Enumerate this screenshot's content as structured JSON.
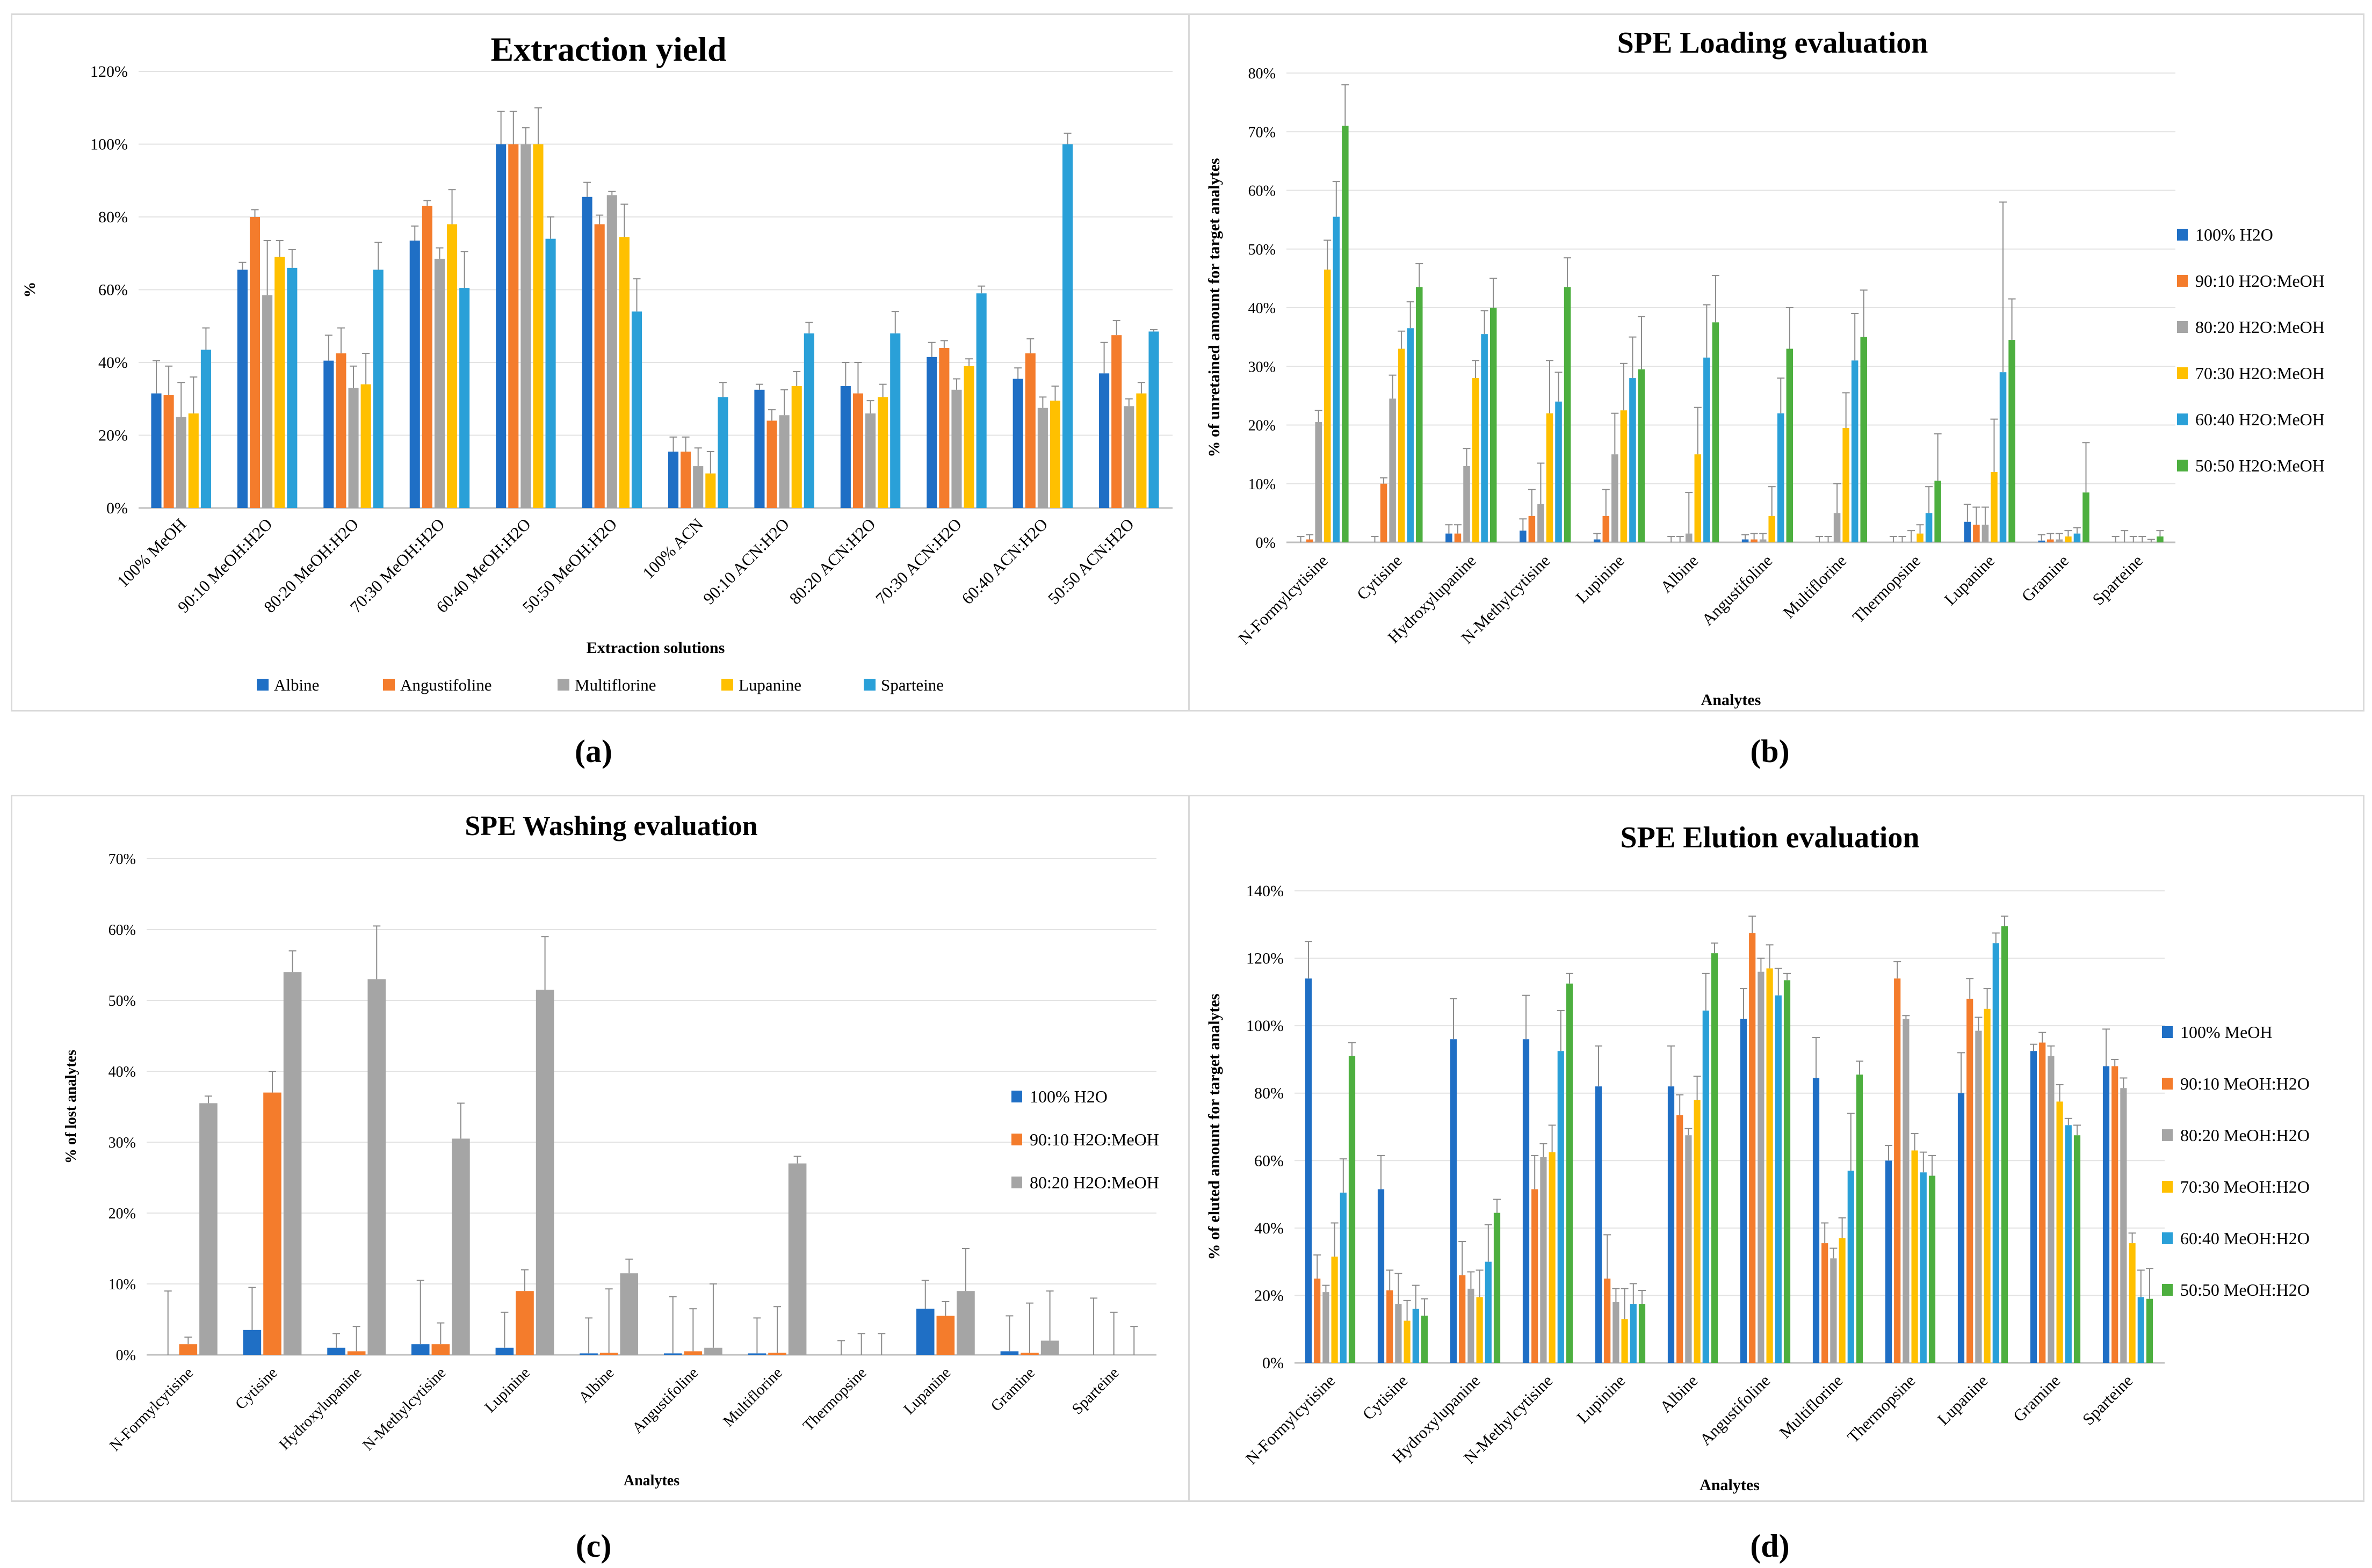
{
  "colors": {
    "blue1": "#1f6fc5",
    "orange": "#f47c2c",
    "gray": "#a5a5a5",
    "yellow": "#ffc000",
    "blue2": "#2aa0d8",
    "green": "#4daf3f"
  },
  "captions": {
    "a": "(a)",
    "b": "(b)",
    "c": "(c)",
    "d": "(d)"
  },
  "chart_data": [
    {
      "id": "a",
      "type": "bar",
      "title": "Extraction yield",
      "xlabel": "Extraction solutions",
      "ylabel": "%",
      "ylim": [
        0,
        120
      ],
      "yticks": [
        "0%",
        "20%",
        "40%",
        "60%",
        "80%",
        "100%",
        "120%"
      ],
      "legend_position": "bottom",
      "categories": [
        "100% MeOH",
        "90:10 MeOH:H2O",
        "80:20 MeOH:H2O",
        "70:30 MeOH:H2O",
        "60:40 MeOH:H2O",
        "50:50 MeOH:H2O",
        "100% ACN",
        "90:10 ACN:H2O",
        "80:20 ACN:H2O",
        "70:30 ACN:H2O",
        "60:40 ACN:H2O",
        "50:50 ACN:H2O"
      ],
      "series": [
        {
          "name": "Albine",
          "color": "#1f6fc5",
          "values": [
            31.5,
            65.5,
            40.5,
            73.5,
            100,
            85.5,
            15.5,
            32.5,
            33.5,
            41.5,
            35.5,
            37
          ],
          "errors": [
            9,
            2,
            7,
            4,
            9,
            4,
            4,
            1.5,
            6.5,
            4,
            3,
            8.5
          ]
        },
        {
          "name": "Angustifoline",
          "color": "#f47c2c",
          "values": [
            31,
            80,
            42.5,
            83,
            100,
            78,
            15.5,
            24,
            31.5,
            44,
            42.5,
            47.5
          ],
          "errors": [
            8,
            2,
            7,
            1.5,
            9,
            2.5,
            4,
            3,
            8.5,
            2,
            4,
            4
          ]
        },
        {
          "name": "Multiflorine",
          "color": "#a5a5a5",
          "values": [
            25,
            58.5,
            33,
            68.5,
            100,
            86,
            11.5,
            25.5,
            26,
            32.5,
            27.5,
            28
          ],
          "errors": [
            9.5,
            15,
            6,
            3,
            4.5,
            1,
            5,
            7,
            3.5,
            3,
            3,
            2
          ]
        },
        {
          "name": "Lupanine",
          "color": "#ffc000",
          "values": [
            26,
            69,
            34,
            78,
            100,
            74.5,
            9.5,
            33.5,
            30.5,
            39,
            29.5,
            31.5
          ],
          "errors": [
            10,
            4.5,
            8.5,
            9.5,
            10,
            9,
            6,
            4,
            3.5,
            2,
            4,
            3
          ]
        },
        {
          "name": "Sparteine",
          "color": "#2aa0d8",
          "values": [
            43.5,
            66,
            65.5,
            60.5,
            74,
            54,
            30.5,
            48,
            48,
            59,
            100,
            48.5
          ],
          "errors": [
            6,
            5,
            7.5,
            10,
            6,
            9,
            4,
            3,
            6,
            2,
            3,
            0.5
          ]
        }
      ]
    },
    {
      "id": "b",
      "type": "bar",
      "title": "SPE Loading evaluation",
      "xlabel": "Analytes",
      "ylabel": "% of unretained amount for target analytes",
      "ylim": [
        0,
        80
      ],
      "yticks": [
        "0%",
        "10%",
        "20%",
        "30%",
        "40%",
        "50%",
        "60%",
        "70%",
        "80%"
      ],
      "legend_position": "right",
      "categories": [
        "N-Formylcytisine",
        "Cytisine",
        "Hydroxylupanine",
        "N-Methylcytisine",
        "Lupinine",
        "Albine",
        "Angustifoline",
        "Multiflorine",
        "Thermopsine",
        "Lupanine",
        "Gramine",
        "Sparteine"
      ],
      "series": [
        {
          "name": "100% H2O",
          "color": "#1f6fc5",
          "values": [
            0,
            0,
            1.5,
            2,
            0.5,
            0,
            0.5,
            0,
            0,
            3.5,
            0.3,
            0
          ],
          "errors": [
            1,
            1,
            1.5,
            2,
            1,
            1,
            0.8,
            1,
            1,
            3,
            1,
            1
          ]
        },
        {
          "name": "90:10 H2O:MeOH",
          "color": "#f47c2c",
          "values": [
            0.5,
            10,
            1.5,
            4.5,
            4.5,
            0,
            0.5,
            0,
            0,
            3,
            0.5,
            0
          ],
          "errors": [
            0.8,
            1,
            1.5,
            4.5,
            4.5,
            1,
            1,
            1,
            1,
            3,
            1,
            2
          ]
        },
        {
          "name": "80:20 H2O:MeOH",
          "color": "#a5a5a5",
          "values": [
            20.5,
            24.5,
            13,
            6.5,
            15,
            1.5,
            0.5,
            5,
            0,
            3,
            0.5,
            0
          ],
          "errors": [
            2,
            4,
            3,
            7,
            7,
            7,
            1,
            5,
            2,
            3,
            1,
            1
          ]
        },
        {
          "name": "70:30 H2O:MeOH",
          "color": "#ffc000",
          "values": [
            46.5,
            33,
            28,
            22,
            22.5,
            15,
            4.5,
            19.5,
            1.5,
            12,
            1,
            0
          ],
          "errors": [
            5,
            3,
            3,
            9,
            8,
            8,
            5,
            6,
            1.5,
            9,
            1,
            1
          ]
        },
        {
          "name": "60:40 H2O:MeOH",
          "color": "#2aa0d8",
          "values": [
            55.5,
            36.5,
            35.5,
            24,
            28,
            31.5,
            22,
            31,
            5,
            29,
            1.5,
            0
          ],
          "errors": [
            6,
            4.5,
            4,
            5,
            7,
            9,
            6,
            8,
            4.5,
            29,
            1,
            0.5
          ]
        },
        {
          "name": "50:50 H2O:MeOH",
          "color": "#4daf3f",
          "values": [
            71,
            43.5,
            40,
            43.5,
            29.5,
            37.5,
            33,
            35,
            10.5,
            34.5,
            8.5,
            1
          ],
          "errors": [
            7,
            4,
            5,
            5,
            9,
            8,
            7,
            8,
            8,
            7,
            8.5,
            1
          ]
        }
      ]
    },
    {
      "id": "c",
      "type": "bar",
      "title": "SPE Washing evaluation",
      "xlabel": "Analytes",
      "ylabel": "% of lost analytes",
      "ylim": [
        0,
        70
      ],
      "yticks": [
        "0%",
        "10%",
        "20%",
        "30%",
        "40%",
        "50%",
        "60%",
        "70%"
      ],
      "legend_position": "right",
      "categories": [
        "N-Formylcytisine",
        "Cytisine",
        "Hydroxylupanine",
        "N-Methylcytisine",
        "Lupinine",
        "Albine",
        "Angustifoline",
        "Multiflorine",
        "Thermopsine",
        "Lupanine",
        "Gramine",
        "Sparteine"
      ],
      "series": [
        {
          "name": "100% H2O",
          "color": "#1f6fc5",
          "values": [
            0,
            3.5,
            1,
            1.5,
            1,
            0.2,
            0.2,
            0.2,
            0,
            6.5,
            0.5,
            0
          ],
          "errors": [
            9,
            6,
            2,
            9,
            5,
            5,
            8,
            5,
            2,
            4,
            5,
            8
          ]
        },
        {
          "name": "90:10 H2O:MeOH",
          "color": "#f47c2c",
          "values": [
            1.5,
            37,
            0.5,
            1.5,
            9,
            0.3,
            0.5,
            0.3,
            0,
            5.5,
            0.3,
            0
          ],
          "errors": [
            1,
            3,
            3.5,
            3,
            3,
            9,
            6,
            6.5,
            3,
            2,
            7,
            6
          ]
        },
        {
          "name": "80:20 H2O:MeOH",
          "color": "#a5a5a5",
          "values": [
            35.5,
            54,
            53,
            30.5,
            51.5,
            11.5,
            1,
            27,
            0,
            9,
            2,
            0
          ],
          "errors": [
            1,
            3,
            7.5,
            5,
            7.5,
            2,
            9,
            1,
            3,
            6,
            7,
            4
          ]
        }
      ]
    },
    {
      "id": "d",
      "type": "bar",
      "title": "SPE Elution evaluation",
      "xlabel": "Analytes",
      "ylabel": "% of eluted amount for target analytes",
      "ylim": [
        0,
        140
      ],
      "yticks": [
        "0%",
        "20%",
        "40%",
        "60%",
        "80%",
        "100%",
        "120%",
        "140%"
      ],
      "legend_position": "right",
      "categories": [
        "N-Formylcytisine",
        "Cytisine",
        "Hydroxylupanine",
        "N-Methylcytisine",
        "Lupinine",
        "Albine",
        "Angustifoline",
        "Multiflorine",
        "Thermopsine",
        "Lupanine",
        "Gramine",
        "Sparteine"
      ],
      "series": [
        {
          "name": "100% MeOH",
          "color": "#1f6fc5",
          "values": [
            114,
            51.5,
            96,
            96,
            82,
            82,
            102,
            84.5,
            60,
            80,
            92.5,
            88
          ],
          "errors": [
            11,
            10,
            12,
            13,
            12,
            12,
            9,
            12,
            4.5,
            12,
            2,
            11
          ]
        },
        {
          "name": "90:10 MeOH:H2O",
          "color": "#f47c2c",
          "values": [
            25,
            21.5,
            26,
            51.5,
            25,
            73.5,
            127.5,
            35.5,
            114,
            108,
            95,
            88
          ],
          "errors": [
            7,
            6,
            10,
            10,
            13,
            6,
            5,
            6,
            5,
            6,
            3,
            2
          ]
        },
        {
          "name": "80:20 MeOH:H2O",
          "color": "#a5a5a5",
          "values": [
            21,
            17.5,
            22,
            61,
            18,
            67.5,
            116,
            31,
            102,
            98.5,
            91,
            81.5
          ],
          "errors": [
            2,
            9,
            5,
            4,
            4,
            2,
            4,
            3,
            1,
            4,
            3,
            3
          ]
        },
        {
          "name": "70:30 MeOH:H2O",
          "color": "#ffc000",
          "values": [
            31.5,
            12.5,
            19.5,
            62.5,
            13,
            78,
            117,
            37,
            63,
            105,
            77.5,
            35.5
          ],
          "errors": [
            10,
            6,
            8,
            8,
            9,
            7,
            7,
            6,
            5,
            6,
            5,
            3
          ]
        },
        {
          "name": "60:40 MeOH:H2O",
          "color": "#2aa0d8",
          "values": [
            50.5,
            16,
            30,
            92.5,
            17.5,
            104.5,
            109,
            57,
            56.5,
            124.5,
            70.5,
            19.5
          ],
          "errors": [
            10,
            7,
            11,
            12,
            6,
            11,
            8,
            17,
            6,
            3,
            2,
            8
          ]
        },
        {
          "name": "50:50 MeOH:H2O",
          "color": "#4daf3f",
          "values": [
            91,
            14,
            44.5,
            112.5,
            17.5,
            121.5,
            113.5,
            85.5,
            55.5,
            129.5,
            67.5,
            19
          ],
          "errors": [
            4,
            5,
            4,
            3,
            4,
            3,
            2,
            4,
            6,
            3,
            3,
            9
          ]
        }
      ]
    }
  ]
}
